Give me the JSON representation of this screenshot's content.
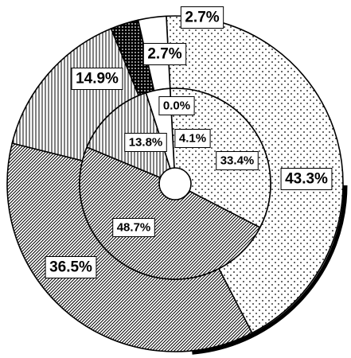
{
  "chart_data": {
    "type": "pie",
    "title": "",
    "rings": [
      {
        "ring": "outer",
        "segments": [
          {
            "value": 43.3,
            "label": "43.3%",
            "pattern": "dots"
          },
          {
            "value": 36.5,
            "label": "36.5%",
            "pattern": "diagonal"
          },
          {
            "value": 14.9,
            "label": "14.9%",
            "pattern": "vertical"
          },
          {
            "value": 2.7,
            "label": "2.7%",
            "pattern": "crosshatch"
          },
          {
            "value": 2.7,
            "label": "2.7%",
            "pattern": "blank"
          }
        ]
      },
      {
        "ring": "inner",
        "segments": [
          {
            "value": 33.4,
            "label": "33.4%",
            "pattern": "dots"
          },
          {
            "value": 48.7,
            "label": "48.7%",
            "pattern": "diagonal"
          },
          {
            "value": 13.8,
            "label": "13.8%",
            "pattern": "vertical"
          },
          {
            "value": 0.0,
            "label": "0.0%",
            "pattern": "crosshatch"
          },
          {
            "value": 4.1,
            "label": "4.1%",
            "pattern": "blank"
          }
        ]
      }
    ]
  }
}
